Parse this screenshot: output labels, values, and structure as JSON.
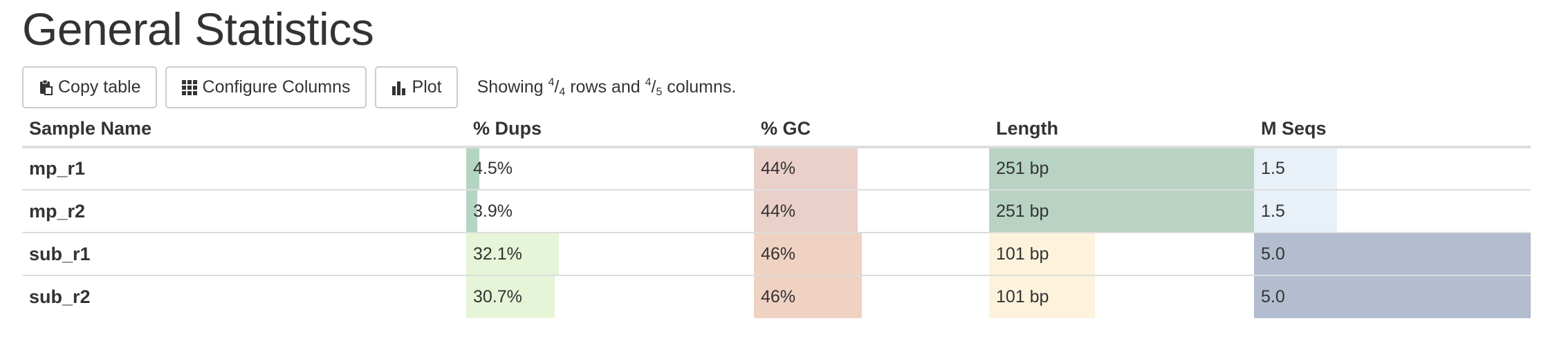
{
  "title": "General Statistics",
  "toolbar": {
    "copy_label": "Copy table",
    "configure_label": "Configure Columns",
    "plot_label": "Plot",
    "status_prefix": "Showing ",
    "rows_shown": "4",
    "rows_total": "4",
    "status_mid": " rows and ",
    "cols_shown": "4",
    "cols_total": "5",
    "status_suffix": " columns."
  },
  "table": {
    "headers": [
      "Sample Name",
      "% Dups",
      "% GC",
      "Length",
      "M Seqs"
    ],
    "rows": [
      {
        "name": "mp_r1",
        "dups": {
          "text": "4.5%",
          "fill": 0.045,
          "color": "#b5d5c3"
        },
        "gc": {
          "text": "44%",
          "fill": 0.44,
          "color": "#ead0c9"
        },
        "length": {
          "text": "251 bp",
          "fill": 1.0,
          "color": "#b8d3c4"
        },
        "mseqs": {
          "text": "1.5",
          "fill": 0.3,
          "color": "#e8f0f8"
        }
      },
      {
        "name": "mp_r2",
        "dups": {
          "text": "3.9%",
          "fill": 0.039,
          "color": "#b5d5c3"
        },
        "gc": {
          "text": "44%",
          "fill": 0.44,
          "color": "#ead0c9"
        },
        "length": {
          "text": "251 bp",
          "fill": 1.0,
          "color": "#b8d3c4"
        },
        "mseqs": {
          "text": "1.5",
          "fill": 0.3,
          "color": "#e8f0f8"
        }
      },
      {
        "name": "sub_r1",
        "dups": {
          "text": "32.1%",
          "fill": 0.321,
          "color": "#e6f4d7"
        },
        "gc": {
          "text": "46%",
          "fill": 0.46,
          "color": "#f0d2c2"
        },
        "length": {
          "text": "101 bp",
          "fill": 0.4,
          "color": "#fdf3dd"
        },
        "mseqs": {
          "text": "5.0",
          "fill": 1.0,
          "color": "#b3bdcf"
        }
      },
      {
        "name": "sub_r2",
        "dups": {
          "text": "30.7%",
          "fill": 0.307,
          "color": "#e6f4d7"
        },
        "gc": {
          "text": "46%",
          "fill": 0.46,
          "color": "#f0d2c2"
        },
        "length": {
          "text": "101 bp",
          "fill": 0.4,
          "color": "#fdf3dd"
        },
        "mseqs": {
          "text": "5.0",
          "fill": 1.0,
          "color": "#b3bdcf"
        }
      }
    ]
  }
}
